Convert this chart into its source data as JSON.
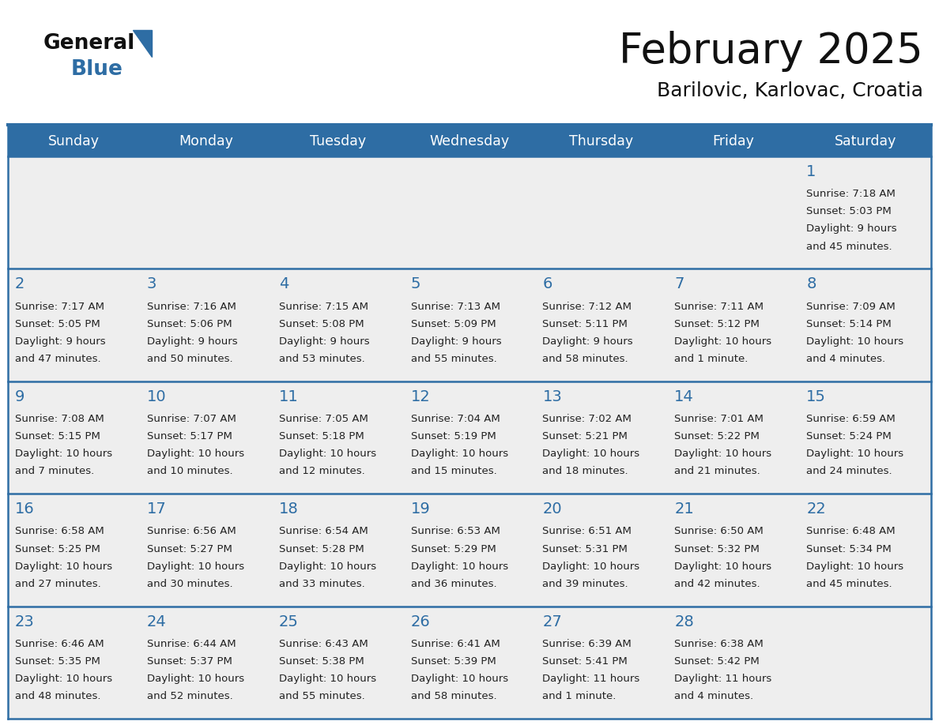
{
  "title": "February 2025",
  "subtitle": "Barilovic, Karlovac, Croatia",
  "days_of_week": [
    "Sunday",
    "Monday",
    "Tuesday",
    "Wednesday",
    "Thursday",
    "Friday",
    "Saturday"
  ],
  "header_bg": "#2E6DA4",
  "header_text": "#FFFFFF",
  "cell_bg": "#EEEEEE",
  "border_color": "#2E6DA4",
  "day_num_color": "#2E6DA4",
  "info_color": "#222222",
  "title_color": "#111111",
  "logo_general_color": "#111111",
  "logo_blue_color": "#2E6DA4",
  "calendar_data": [
    [
      null,
      null,
      null,
      null,
      null,
      null,
      {
        "day": 1,
        "sunrise": "7:18 AM",
        "sunset": "5:03 PM",
        "daylight_line1": "9 hours",
        "daylight_line2": "and 45 minutes."
      }
    ],
    [
      {
        "day": 2,
        "sunrise": "7:17 AM",
        "sunset": "5:05 PM",
        "daylight_line1": "9 hours",
        "daylight_line2": "and 47 minutes."
      },
      {
        "day": 3,
        "sunrise": "7:16 AM",
        "sunset": "5:06 PM",
        "daylight_line1": "9 hours",
        "daylight_line2": "and 50 minutes."
      },
      {
        "day": 4,
        "sunrise": "7:15 AM",
        "sunset": "5:08 PM",
        "daylight_line1": "9 hours",
        "daylight_line2": "and 53 minutes."
      },
      {
        "day": 5,
        "sunrise": "7:13 AM",
        "sunset": "5:09 PM",
        "daylight_line1": "9 hours",
        "daylight_line2": "and 55 minutes."
      },
      {
        "day": 6,
        "sunrise": "7:12 AM",
        "sunset": "5:11 PM",
        "daylight_line1": "9 hours",
        "daylight_line2": "and 58 minutes."
      },
      {
        "day": 7,
        "sunrise": "7:11 AM",
        "sunset": "5:12 PM",
        "daylight_line1": "10 hours",
        "daylight_line2": "and 1 minute."
      },
      {
        "day": 8,
        "sunrise": "7:09 AM",
        "sunset": "5:14 PM",
        "daylight_line1": "10 hours",
        "daylight_line2": "and 4 minutes."
      }
    ],
    [
      {
        "day": 9,
        "sunrise": "7:08 AM",
        "sunset": "5:15 PM",
        "daylight_line1": "10 hours",
        "daylight_line2": "and 7 minutes."
      },
      {
        "day": 10,
        "sunrise": "7:07 AM",
        "sunset": "5:17 PM",
        "daylight_line1": "10 hours",
        "daylight_line2": "and 10 minutes."
      },
      {
        "day": 11,
        "sunrise": "7:05 AM",
        "sunset": "5:18 PM",
        "daylight_line1": "10 hours",
        "daylight_line2": "and 12 minutes."
      },
      {
        "day": 12,
        "sunrise": "7:04 AM",
        "sunset": "5:19 PM",
        "daylight_line1": "10 hours",
        "daylight_line2": "and 15 minutes."
      },
      {
        "day": 13,
        "sunrise": "7:02 AM",
        "sunset": "5:21 PM",
        "daylight_line1": "10 hours",
        "daylight_line2": "and 18 minutes."
      },
      {
        "day": 14,
        "sunrise": "7:01 AM",
        "sunset": "5:22 PM",
        "daylight_line1": "10 hours",
        "daylight_line2": "and 21 minutes."
      },
      {
        "day": 15,
        "sunrise": "6:59 AM",
        "sunset": "5:24 PM",
        "daylight_line1": "10 hours",
        "daylight_line2": "and 24 minutes."
      }
    ],
    [
      {
        "day": 16,
        "sunrise": "6:58 AM",
        "sunset": "5:25 PM",
        "daylight_line1": "10 hours",
        "daylight_line2": "and 27 minutes."
      },
      {
        "day": 17,
        "sunrise": "6:56 AM",
        "sunset": "5:27 PM",
        "daylight_line1": "10 hours",
        "daylight_line2": "and 30 minutes."
      },
      {
        "day": 18,
        "sunrise": "6:54 AM",
        "sunset": "5:28 PM",
        "daylight_line1": "10 hours",
        "daylight_line2": "and 33 minutes."
      },
      {
        "day": 19,
        "sunrise": "6:53 AM",
        "sunset": "5:29 PM",
        "daylight_line1": "10 hours",
        "daylight_line2": "and 36 minutes."
      },
      {
        "day": 20,
        "sunrise": "6:51 AM",
        "sunset": "5:31 PM",
        "daylight_line1": "10 hours",
        "daylight_line2": "and 39 minutes."
      },
      {
        "day": 21,
        "sunrise": "6:50 AM",
        "sunset": "5:32 PM",
        "daylight_line1": "10 hours",
        "daylight_line2": "and 42 minutes."
      },
      {
        "day": 22,
        "sunrise": "6:48 AM",
        "sunset": "5:34 PM",
        "daylight_line1": "10 hours",
        "daylight_line2": "and 45 minutes."
      }
    ],
    [
      {
        "day": 23,
        "sunrise": "6:46 AM",
        "sunset": "5:35 PM",
        "daylight_line1": "10 hours",
        "daylight_line2": "and 48 minutes."
      },
      {
        "day": 24,
        "sunrise": "6:44 AM",
        "sunset": "5:37 PM",
        "daylight_line1": "10 hours",
        "daylight_line2": "and 52 minutes."
      },
      {
        "day": 25,
        "sunrise": "6:43 AM",
        "sunset": "5:38 PM",
        "daylight_line1": "10 hours",
        "daylight_line2": "and 55 minutes."
      },
      {
        "day": 26,
        "sunrise": "6:41 AM",
        "sunset": "5:39 PM",
        "daylight_line1": "10 hours",
        "daylight_line2": "and 58 minutes."
      },
      {
        "day": 27,
        "sunrise": "6:39 AM",
        "sunset": "5:41 PM",
        "daylight_line1": "11 hours",
        "daylight_line2": "and 1 minute."
      },
      {
        "day": 28,
        "sunrise": "6:38 AM",
        "sunset": "5:42 PM",
        "daylight_line1": "11 hours",
        "daylight_line2": "and 4 minutes."
      },
      null
    ]
  ]
}
